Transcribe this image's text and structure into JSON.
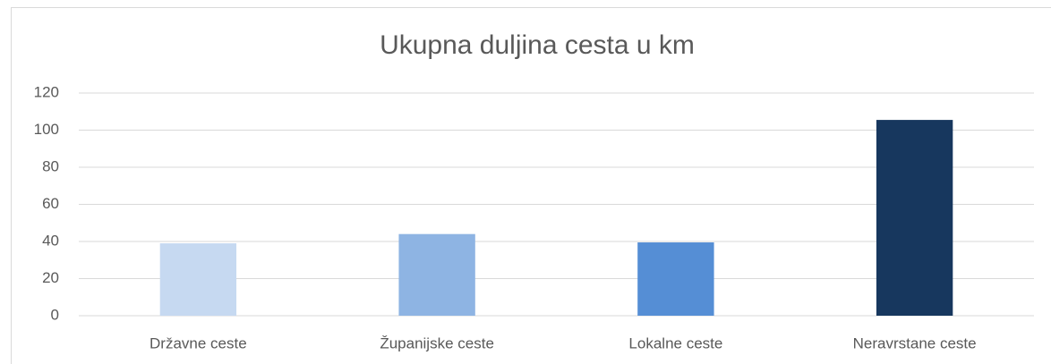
{
  "chart_data": {
    "type": "bar",
    "title": "Ukupna duljina cesta u km",
    "categories": [
      "Državne ceste",
      "Županijske ceste",
      "Lokalne ceste",
      "Neravrstane ceste"
    ],
    "values": [
      39,
      44,
      39.5,
      105.5
    ],
    "colors": [
      "#c6d9f1",
      "#8eb4e3",
      "#558ed5",
      "#17375e"
    ],
    "ylim": [
      0,
      120
    ],
    "yticks": [
      0,
      20,
      40,
      60,
      80,
      100,
      120
    ],
    "grid": true
  }
}
